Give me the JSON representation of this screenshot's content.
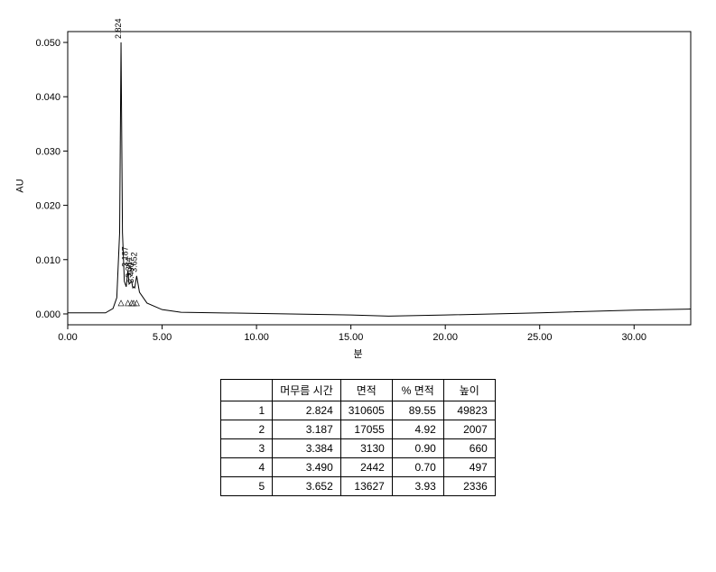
{
  "chart": {
    "type": "chromatogram",
    "ylabel": "AU",
    "xlabel": "분",
    "background_color": "#ffffff",
    "axis_color": "#000000",
    "line_color": "#000000",
    "line_width": 1,
    "xlim": [
      0,
      33
    ],
    "ylim": [
      -0.002,
      0.052
    ],
    "xticks": [
      0,
      5,
      10,
      15,
      20,
      25,
      30
    ],
    "xtick_labels": [
      "0.00",
      "5.00",
      "10.00",
      "15.00",
      "20.00",
      "25.00",
      "30.00"
    ],
    "yticks": [
      0,
      0.01,
      0.02,
      0.03,
      0.04,
      0.05
    ],
    "ytick_labels": [
      "0.000",
      "0.010",
      "0.020",
      "0.030",
      "0.040",
      "0.050"
    ],
    "tick_fontsize": 11,
    "label_fontsize": 11,
    "peak_label_fontsize": 9,
    "peaks": [
      {
        "rt": 2.824,
        "height": 0.05,
        "label": "2.824"
      },
      {
        "rt": 3.187,
        "height": 0.008,
        "label": "3.187"
      },
      {
        "rt": 3.384,
        "height": 0.006,
        "label": "3.384"
      },
      {
        "rt": 3.49,
        "height": 0.005,
        "label": "3.490"
      },
      {
        "rt": 3.652,
        "height": 0.007,
        "label": "3.652"
      }
    ],
    "baseline_points": [
      {
        "x": 0,
        "y": 0.0002
      },
      {
        "x": 2.0,
        "y": 0.0002
      },
      {
        "x": 2.4,
        "y": 0.001
      },
      {
        "x": 2.6,
        "y": 0.003
      },
      {
        "x": 2.75,
        "y": 0.015
      },
      {
        "x": 2.824,
        "y": 0.05
      },
      {
        "x": 2.9,
        "y": 0.015
      },
      {
        "x": 3.0,
        "y": 0.006
      },
      {
        "x": 3.1,
        "y": 0.005
      },
      {
        "x": 3.187,
        "y": 0.008
      },
      {
        "x": 3.25,
        "y": 0.0055
      },
      {
        "x": 3.384,
        "y": 0.006
      },
      {
        "x": 3.45,
        "y": 0.0048
      },
      {
        "x": 3.49,
        "y": 0.005
      },
      {
        "x": 3.55,
        "y": 0.0048
      },
      {
        "x": 3.652,
        "y": 0.007
      },
      {
        "x": 3.8,
        "y": 0.004
      },
      {
        "x": 4.2,
        "y": 0.002
      },
      {
        "x": 5.0,
        "y": 0.0008
      },
      {
        "x": 6.0,
        "y": 0.0003
      },
      {
        "x": 10.0,
        "y": 0.0001
      },
      {
        "x": 15.0,
        "y": -0.0002
      },
      {
        "x": 17.0,
        "y": -0.0004
      },
      {
        "x": 20.0,
        "y": -0.0002
      },
      {
        "x": 25.0,
        "y": 0.0002
      },
      {
        "x": 30.0,
        "y": 0.0007
      },
      {
        "x": 33.0,
        "y": 0.0009
      }
    ]
  },
  "table": {
    "columns": [
      "",
      "머무름 시간",
      "면적",
      "% 면적",
      "높이"
    ],
    "rows": [
      [
        "1",
        "2.824",
        "310605",
        "89.55",
        "49823"
      ],
      [
        "2",
        "3.187",
        "17055",
        "4.92",
        "2007"
      ],
      [
        "3",
        "3.384",
        "3130",
        "0.90",
        "660"
      ],
      [
        "4",
        "3.490",
        "2442",
        "0.70",
        "497"
      ],
      [
        "5",
        "3.652",
        "13627",
        "3.93",
        "2336"
      ]
    ],
    "border_color": "#000000",
    "cell_fontsize": 12
  }
}
